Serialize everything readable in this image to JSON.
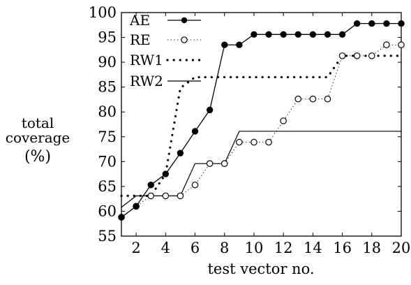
{
  "chart_data": {
    "type": "line",
    "xlabel": "test vector no.",
    "ylabel_lines": [
      "total",
      "coverage",
      "(%)"
    ],
    "xlim": [
      1,
      20
    ],
    "ylim": [
      55,
      100
    ],
    "x_ticks": [
      2,
      4,
      6,
      8,
      10,
      12,
      14,
      16,
      18,
      20
    ],
    "y_ticks": [
      55,
      60,
      65,
      70,
      75,
      80,
      85,
      90,
      95,
      100
    ],
    "legend_position": "top-left",
    "grid": false,
    "series": [
      {
        "name": "AE",
        "style": "solid-line-filled-circles",
        "points": [
          [
            1,
            58.8
          ],
          [
            2,
            61.0
          ],
          [
            3,
            65.3
          ],
          [
            4,
            67.5
          ],
          [
            5,
            71.7
          ],
          [
            6,
            76.1
          ],
          [
            7,
            80.4
          ],
          [
            8,
            93.5
          ],
          [
            9,
            93.5
          ],
          [
            10,
            95.6
          ],
          [
            11,
            95.6
          ],
          [
            12,
            95.6
          ],
          [
            13,
            95.6
          ],
          [
            14,
            95.6
          ],
          [
            15,
            95.6
          ],
          [
            16,
            95.6
          ],
          [
            17,
            97.8
          ],
          [
            18,
            97.8
          ],
          [
            19,
            97.8
          ],
          [
            20,
            97.8
          ]
        ]
      },
      {
        "name": "RE",
        "style": "dotted-line-open-circles",
        "points": [
          [
            1,
            58.8
          ],
          [
            2,
            61.0
          ],
          [
            3,
            63.1
          ],
          [
            4,
            63.1
          ],
          [
            5,
            63.1
          ],
          [
            6,
            65.3
          ],
          [
            7,
            69.6
          ],
          [
            8,
            69.6
          ],
          [
            9,
            73.9
          ],
          [
            10,
            73.9
          ],
          [
            11,
            73.9
          ],
          [
            12,
            78.2
          ],
          [
            13,
            82.6
          ],
          [
            14,
            82.6
          ],
          [
            15,
            82.6
          ],
          [
            16,
            91.3
          ],
          [
            17,
            91.3
          ],
          [
            18,
            91.3
          ],
          [
            19,
            93.5
          ],
          [
            20,
            93.5
          ]
        ]
      },
      {
        "name": "RW1",
        "style": "heavy-dotted-step",
        "points": [
          [
            1,
            63.1
          ],
          [
            2,
            63.1
          ],
          [
            3,
            63.1
          ],
          [
            4,
            67.5
          ],
          [
            5,
            84.8
          ],
          [
            6,
            87.0
          ],
          [
            7,
            87.0
          ],
          [
            8,
            87.0
          ],
          [
            9,
            87.0
          ],
          [
            10,
            87.0
          ],
          [
            11,
            87.0
          ],
          [
            12,
            87.0
          ],
          [
            13,
            87.0
          ],
          [
            14,
            87.0
          ],
          [
            15,
            87.0
          ],
          [
            16,
            91.3
          ],
          [
            17,
            91.3
          ],
          [
            18,
            91.3
          ],
          [
            19,
            91.3
          ],
          [
            20,
            91.3
          ]
        ]
      },
      {
        "name": "RW2",
        "style": "thin-solid-step",
        "points": [
          [
            1,
            60.8
          ],
          [
            2,
            63.1
          ],
          [
            3,
            63.1
          ],
          [
            4,
            63.1
          ],
          [
            5,
            63.1
          ],
          [
            6,
            69.6
          ],
          [
            7,
            69.6
          ],
          [
            8,
            69.6
          ],
          [
            9,
            76.1
          ],
          [
            10,
            76.1
          ],
          [
            11,
            76.1
          ],
          [
            12,
            76.1
          ],
          [
            13,
            76.1
          ],
          [
            14,
            76.1
          ],
          [
            15,
            76.1
          ],
          [
            16,
            76.1
          ],
          [
            17,
            76.1
          ],
          [
            18,
            76.1
          ],
          [
            19,
            76.1
          ],
          [
            20,
            76.1
          ]
        ]
      }
    ]
  }
}
